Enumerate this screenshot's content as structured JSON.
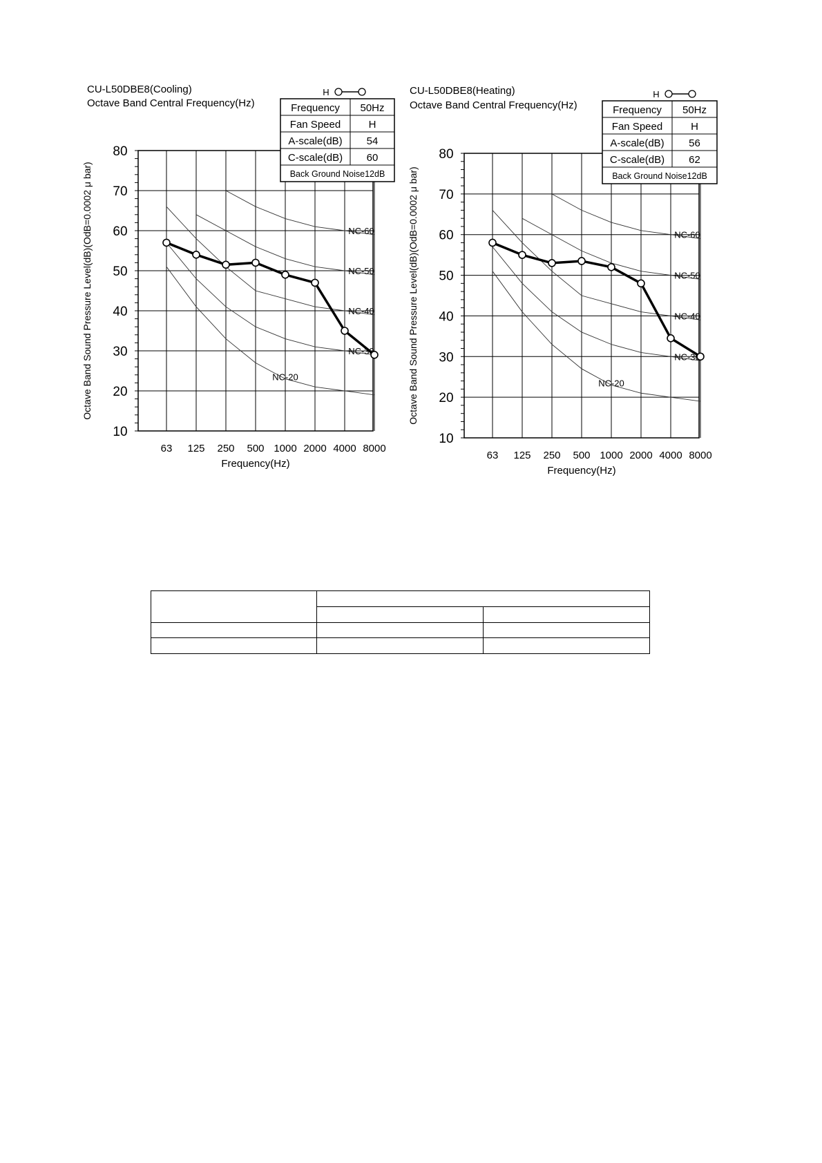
{
  "chart_data": [
    {
      "type": "line",
      "title": "CU-L50DBE8(Cooling)",
      "subtitle": "Octave Band Central Frequency(Hz)",
      "xlabel": "Frequency(Hz)",
      "ylabel": "Octave Band Sound Pressure Level(dB)(OdB=0.0002 μ bar)",
      "categories": [
        "63",
        "125",
        "250",
        "500",
        "1000",
        "2000",
        "4000",
        "8000"
      ],
      "ylim": [
        10,
        80
      ],
      "yticks": [
        "80",
        "70",
        "60",
        "50",
        "40",
        "30",
        "20",
        "10"
      ],
      "grid": true,
      "series": [
        {
          "name": "H",
          "values": [
            57,
            54,
            51.5,
            52,
            49,
            47,
            35,
            29
          ]
        }
      ],
      "nc_curves": [
        {
          "label": "NC-60",
          "values": [
            null,
            null,
            70,
            66,
            63,
            61,
            60,
            59
          ]
        },
        {
          "label": "NC-50",
          "values": [
            null,
            64,
            60,
            56,
            53,
            51,
            50,
            49
          ]
        },
        {
          "label": "NC-40",
          "values": [
            66,
            58,
            51,
            45,
            43,
            41,
            40,
            39
          ]
        },
        {
          "label": "NC-30",
          "values": [
            57,
            48,
            41,
            36,
            33,
            31,
            30,
            29
          ]
        },
        {
          "label": "NC-20",
          "values": [
            51,
            41,
            33,
            27,
            23,
            21,
            20,
            19
          ]
        }
      ],
      "legend": {
        "marker_label": "H"
      },
      "info_table": [
        [
          "Frequency",
          "50Hz"
        ],
        [
          "Fan Speed",
          "H"
        ],
        [
          "A-scale(dB)",
          "54"
        ],
        [
          "C-scale(dB)",
          "60"
        ]
      ],
      "background_noise": "Back Ground Noise12dB"
    },
    {
      "type": "line",
      "title": "CU-L50DBE8(Heating)",
      "subtitle": "Octave Band Central Frequency(Hz)",
      "xlabel": "Frequency(Hz)",
      "ylabel": "Octave Band Sound Pressure Level(dB)(OdB=0.0002 μ bar)",
      "categories": [
        "63",
        "125",
        "250",
        "500",
        "1000",
        "2000",
        "4000",
        "8000"
      ],
      "ylim": [
        10,
        80
      ],
      "yticks": [
        "80",
        "70",
        "60",
        "50",
        "40",
        "30",
        "20",
        "10"
      ],
      "grid": true,
      "series": [
        {
          "name": "H",
          "values": [
            58,
            55,
            53,
            53.5,
            52,
            48,
            34.5,
            30
          ]
        }
      ],
      "nc_curves": [
        {
          "label": "NC-60",
          "values": [
            null,
            null,
            70,
            66,
            63,
            61,
            60,
            59
          ]
        },
        {
          "label": "NC-50",
          "values": [
            null,
            64,
            60,
            56,
            53,
            51,
            50,
            49
          ]
        },
        {
          "label": "NC-40",
          "values": [
            66,
            58,
            51,
            45,
            43,
            41,
            40,
            39
          ]
        },
        {
          "label": "NC-30",
          "values": [
            57,
            48,
            41,
            36,
            33,
            31,
            30,
            29
          ]
        },
        {
          "label": "NC-20",
          "values": [
            51,
            41,
            33,
            27,
            23,
            21,
            20,
            19
          ]
        }
      ],
      "legend": {
        "marker_label": "H"
      },
      "info_table": [
        [
          "Frequency",
          "50Hz"
        ],
        [
          "Fan Speed",
          "H"
        ],
        [
          "A-scale(dB)",
          "56"
        ],
        [
          "C-scale(dB)",
          "62"
        ]
      ],
      "background_noise": "Back Ground Noise12dB"
    }
  ]
}
